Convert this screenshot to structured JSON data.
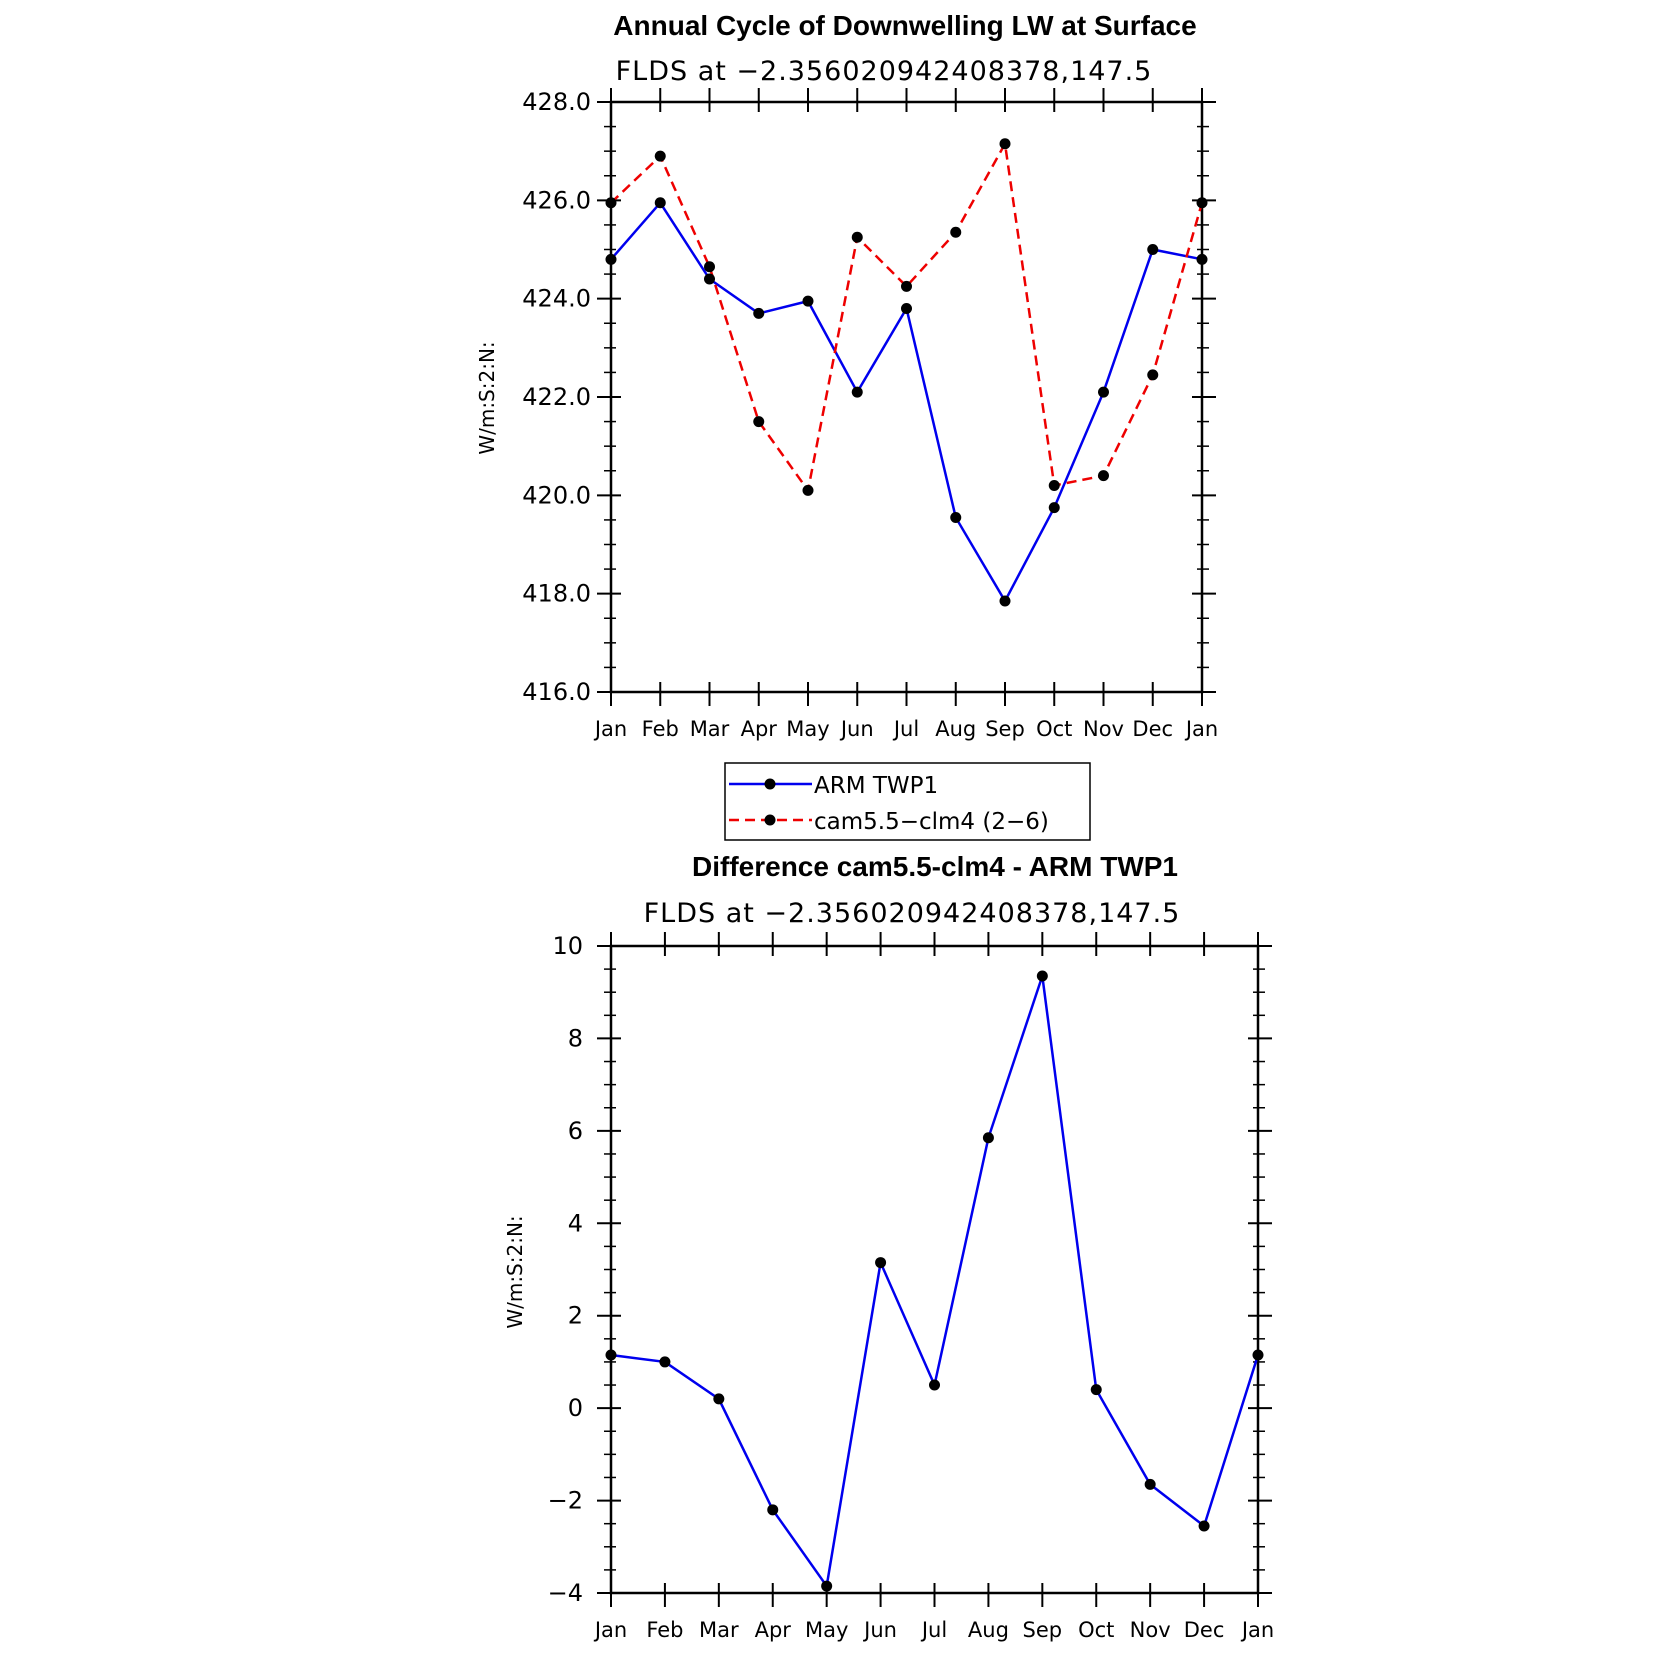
{
  "chart_data": [
    {
      "type": "line",
      "title": "Annual Cycle of Downwelling LW at Surface",
      "subtitle": "FLDS at −2.356020942408378,147.5",
      "ylabel": "W/m:S:2:N:",
      "xlabel": "",
      "ylim": [
        416,
        428
      ],
      "yticks": [
        416,
        418,
        420,
        422,
        424,
        426,
        428
      ],
      "ytick_labels": [
        "416.0",
        "418.0",
        "420.0",
        "422.0",
        "424.0",
        "426.0",
        "428.0"
      ],
      "categories": [
        "Jan",
        "Feb",
        "Mar",
        "Apr",
        "May",
        "Jun",
        "Jul",
        "Aug",
        "Sep",
        "Oct",
        "Nov",
        "Dec",
        "Jan"
      ],
      "grid": false,
      "series": [
        {
          "name": "ARM TWP1",
          "color": "#0000ee",
          "dash": "solid",
          "values": [
            424.8,
            425.95,
            424.4,
            423.7,
            423.95,
            422.1,
            423.8,
            419.55,
            417.85,
            419.75,
            422.1,
            425.0,
            424.8
          ]
        },
        {
          "name": "cam5.5−clm4 (2−6)",
          "color": "#ee0000",
          "dash": "dashed",
          "values": [
            425.95,
            426.9,
            424.65,
            421.5,
            420.1,
            425.25,
            424.25,
            425.35,
            427.15,
            420.2,
            420.4,
            422.45,
            425.95
          ]
        }
      ]
    },
    {
      "type": "line",
      "title": "Difference cam5.5-clm4 - ARM TWP1",
      "subtitle": "FLDS at −2.356020942408378,147.5",
      "ylabel": "W/m:S:2:N:",
      "xlabel": "",
      "ylim": [
        -4,
        10
      ],
      "yticks": [
        -4,
        -2,
        0,
        2,
        4,
        6,
        8,
        10
      ],
      "ytick_labels": [
        "−4",
        "−2",
        "0",
        "2",
        "4",
        "6",
        "8",
        "10"
      ],
      "categories": [
        "Jan",
        "Feb",
        "Mar",
        "Apr",
        "May",
        "Jun",
        "Jul",
        "Aug",
        "Sep",
        "Oct",
        "Nov",
        "Dec",
        "Jan"
      ],
      "grid": false,
      "series": [
        {
          "color": "#0000ee",
          "dash": "solid",
          "values": [
            1.15,
            1.0,
            0.2,
            -2.2,
            -3.85,
            3.15,
            0.5,
            5.85,
            9.35,
            0.4,
            -1.65,
            -2.55,
            1.15
          ]
        }
      ]
    }
  ]
}
